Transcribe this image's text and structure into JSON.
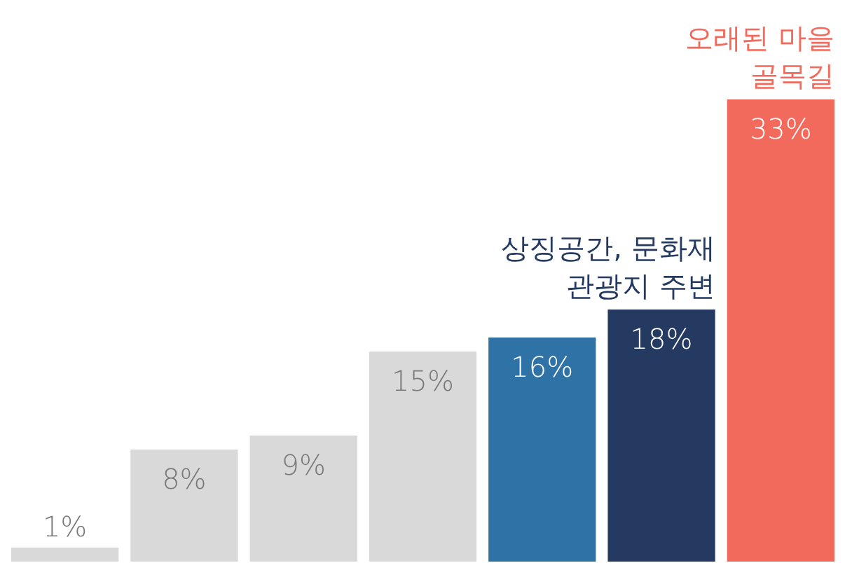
{
  "chart_data": {
    "type": "bar",
    "categories": [
      null,
      null,
      null,
      null,
      null,
      null,
      null
    ],
    "values": [
      1,
      8,
      9,
      15,
      16,
      18,
      33
    ],
    "colors": [
      "#d9d9d9",
      "#d9d9d9",
      "#d9d9d9",
      "#d9d9d9",
      "#2e72a6",
      "#243a60",
      "#f26a5b"
    ],
    "value_labels": [
      "1%",
      "8%",
      "9%",
      "15%",
      "16%",
      "18%",
      "33%"
    ],
    "ylim": [
      0,
      33
    ],
    "annotations": [
      {
        "text": "상징공간, 문화재\n관광지 주변",
        "y": 18
      },
      {
        "text": "오래된 마을\n골목길",
        "y": 33
      }
    ]
  }
}
